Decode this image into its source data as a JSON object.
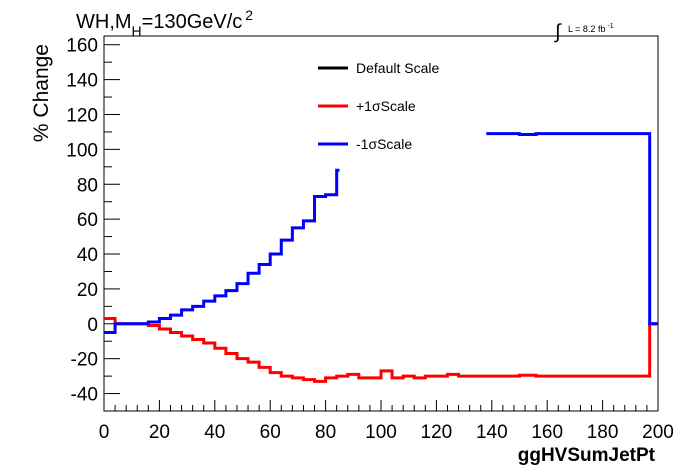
{
  "chart_data": {
    "type": "line",
    "title_parts": {
      "main": "WH,M",
      "sub": "H",
      "rest": "=130GeV/c",
      "sup": "2"
    },
    "lumi_parts": {
      "integral": "∫",
      "text": "L = 8.2 fb",
      "sup": "-1"
    },
    "xlabel": "ggHVSumJetPt",
    "ylabel": "% Change",
    "xlim": [
      0,
      200
    ],
    "ylim": [
      -50,
      165
    ],
    "x_ticks": [
      "0",
      "20",
      "40",
      "60",
      "80",
      "100",
      "120",
      "140",
      "160",
      "180",
      "200"
    ],
    "y_ticks": [
      "-40",
      "-20",
      "0",
      "20",
      "40",
      "60",
      "80",
      "100",
      "120",
      "140",
      "160"
    ],
    "legend": {
      "position": "top-center",
      "entries": [
        {
          "label": "Default Scale",
          "color": "#000000"
        },
        {
          "label": "+1σScale",
          "color": "#ff0000"
        },
        {
          "label": "-1σScale",
          "color": "#0000ff"
        }
      ]
    },
    "series": [
      {
        "name": "Default Scale",
        "color": "#000000",
        "steps": []
      },
      {
        "name": "+1σScale",
        "color": "#ff0000",
        "steps": [
          [
            0,
            4,
            3
          ],
          [
            4,
            8,
            0
          ],
          [
            8,
            12,
            0
          ],
          [
            12,
            16,
            0
          ],
          [
            16,
            20,
            -1
          ],
          [
            20,
            24,
            -3
          ],
          [
            24,
            28,
            -5
          ],
          [
            28,
            32,
            -7
          ],
          [
            32,
            36,
            -9
          ],
          [
            36,
            40,
            -11
          ],
          [
            40,
            44,
            -14
          ],
          [
            44,
            48,
            -17
          ],
          [
            48,
            52,
            -20
          ],
          [
            52,
            56,
            -22
          ],
          [
            56,
            60,
            -25
          ],
          [
            60,
            64,
            -28
          ],
          [
            64,
            68,
            -30
          ],
          [
            68,
            72,
            -31
          ],
          [
            72,
            76,
            -32
          ],
          [
            76,
            80,
            -33
          ],
          [
            80,
            84,
            -31
          ],
          [
            84,
            88,
            -30
          ],
          [
            88,
            92,
            -29
          ],
          [
            92,
            96,
            -31
          ],
          [
            96,
            100,
            -31
          ],
          [
            100,
            104,
            -27
          ],
          [
            104,
            108,
            -31
          ],
          [
            108,
            112,
            -30
          ],
          [
            112,
            116,
            -31
          ],
          [
            116,
            120,
            -30
          ],
          [
            120,
            124,
            -30
          ],
          [
            124,
            128,
            -29
          ],
          [
            128,
            150,
            -30
          ],
          [
            150,
            156,
            -29.5
          ],
          [
            156,
            197,
            -30
          ],
          [
            197,
            200,
            0
          ]
        ]
      },
      {
        "name": "-1σScale",
        "color": "#0000ff",
        "steps": [
          [
            0,
            4,
            -5
          ],
          [
            4,
            8,
            0
          ],
          [
            8,
            12,
            0
          ],
          [
            12,
            16,
            0
          ],
          [
            16,
            20,
            1
          ],
          [
            20,
            24,
            3
          ],
          [
            24,
            28,
            5
          ],
          [
            28,
            32,
            8
          ],
          [
            32,
            36,
            10
          ],
          [
            36,
            40,
            13
          ],
          [
            40,
            44,
            16
          ],
          [
            44,
            48,
            19
          ],
          [
            48,
            52,
            23
          ],
          [
            52,
            56,
            29
          ],
          [
            56,
            60,
            34
          ],
          [
            60,
            64,
            40
          ],
          [
            64,
            68,
            48
          ],
          [
            68,
            72,
            55
          ],
          [
            72,
            76,
            59
          ],
          [
            76,
            80,
            73
          ],
          [
            80,
            84,
            74
          ],
          [
            84,
            85,
            88
          ],
          [
            138,
            150,
            109
          ],
          [
            150,
            156,
            108.5
          ],
          [
            156,
            197,
            109
          ],
          [
            197,
            200,
            0
          ]
        ]
      }
    ]
  }
}
